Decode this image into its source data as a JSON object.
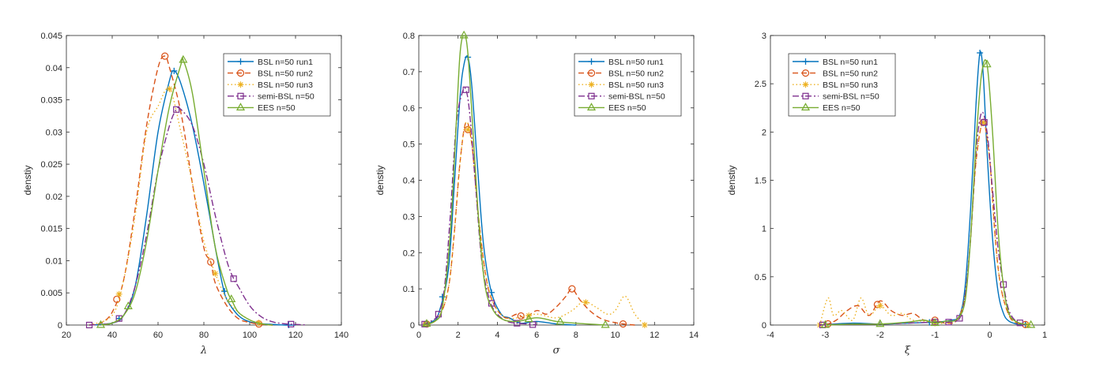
{
  "colors": {
    "blue": "#0072BD",
    "orange": "#D95319",
    "yellow": "#EDB120",
    "purple": "#7E2F8E",
    "green": "#77AC30",
    "axis": "#262626"
  },
  "chart_data": [
    {
      "type": "line",
      "xlabel": "λ",
      "ylabel": "denstiy",
      "xlim": [
        20,
        140
      ],
      "ylim": [
        0,
        0.045
      ],
      "xticks": [
        "20",
        "40",
        "60",
        "80",
        "100",
        "120",
        "140"
      ],
      "yticks": [
        "0",
        "0.005",
        "0.01",
        "0.015",
        "0.02",
        "0.025",
        "0.03",
        "0.035",
        "0.04",
        "0.045"
      ],
      "legend_position": "top-right",
      "series": [
        {
          "name": "BSL n=50 run1",
          "color": "blue",
          "dash": "",
          "marker": "plus",
          "x": [
            30,
            40,
            45,
            50,
            55,
            60,
            65,
            67,
            70,
            75,
            80,
            85,
            88,
            90,
            95,
            100,
            105,
            110,
            115,
            120
          ],
          "y": [
            0,
            0.0003,
            0.0015,
            0.006,
            0.017,
            0.03,
            0.038,
            0.0395,
            0.0375,
            0.031,
            0.022,
            0.012,
            0.0065,
            0.004,
            0.0015,
            0.0005,
            0.0002,
            0.0001,
            0,
            0
          ],
          "markers_x": [
            43,
            67,
            89,
            117
          ]
        },
        {
          "name": "BSL n=50 run2",
          "color": "orange",
          "dash": "7,4",
          "marker": "circle",
          "x": [
            30,
            35,
            40,
            45,
            50,
            55,
            60,
            63,
            65,
            70,
            75,
            80,
            83,
            85,
            90,
            95,
            100,
            105,
            110
          ],
          "y": [
            0,
            0.0003,
            0.002,
            0.007,
            0.018,
            0.031,
            0.04,
            0.0418,
            0.04,
            0.033,
            0.022,
            0.012,
            0.0098,
            0.0065,
            0.003,
            0.001,
            0.0004,
            0.0001,
            0
          ],
          "markers_x": [
            42,
            63,
            83,
            104
          ]
        },
        {
          "name": "BSL n=50 run3",
          "color": "yellow",
          "dash": "1.5,3",
          "marker": "asterisk",
          "x": [
            30,
            40,
            45,
            50,
            55,
            60,
            65,
            70,
            75,
            80,
            85,
            90,
            95,
            100,
            105,
            110
          ],
          "y": [
            0,
            0.0015,
            0.007,
            0.017,
            0.03,
            0.034,
            0.0367,
            0.03,
            0.022,
            0.013,
            0.008,
            0.004,
            0.002,
            0.0008,
            0.0002,
            0
          ],
          "markers_x": [
            43,
            65,
            85,
            104
          ]
        },
        {
          "name": "semi-BSL n=50",
          "color": "purple",
          "dash": "8,3,2,3",
          "marker": "square",
          "x": [
            30,
            40,
            45,
            50,
            55,
            60,
            65,
            68,
            70,
            75,
            80,
            85,
            90,
            93,
            95,
            100,
            105,
            110,
            115,
            120,
            125
          ],
          "y": [
            0,
            0.0003,
            0.0015,
            0.006,
            0.014,
            0.024,
            0.031,
            0.0335,
            0.0335,
            0.031,
            0.025,
            0.017,
            0.01,
            0.0072,
            0.006,
            0.003,
            0.0013,
            0.0005,
            0.0002,
            0.0001,
            0
          ],
          "markers_x": [
            30,
            43,
            68,
            93,
            118
          ]
        },
        {
          "name": "EES n=50",
          "color": "green",
          "dash": "",
          "marker": "triangle",
          "x": [
            35,
            40,
            45,
            50,
            55,
            60,
            65,
            70,
            71,
            75,
            80,
            85,
            90,
            92,
            95,
            100,
            105,
            110
          ],
          "y": [
            0,
            0.0003,
            0.0015,
            0.005,
            0.013,
            0.024,
            0.034,
            0.0405,
            0.0412,
            0.036,
            0.024,
            0.012,
            0.0055,
            0.004,
            0.002,
            0.0008,
            0.0002,
            0
          ],
          "markers_x": [
            35,
            47,
            71,
            92
          ]
        }
      ]
    },
    {
      "type": "line",
      "xlabel": "σ",
      "ylabel": "denstiy",
      "xlim": [
        0,
        14
      ],
      "ylim": [
        0,
        0.8
      ],
      "xticks": [
        "0",
        "2",
        "4",
        "6",
        "8",
        "10",
        "12",
        "14"
      ],
      "yticks": [
        "0",
        "0.1",
        "0.2",
        "0.3",
        "0.4",
        "0.5",
        "0.6",
        "0.7",
        "0.8"
      ],
      "legend_position": "top-right",
      "series": [
        {
          "name": "BSL n=50 run1",
          "color": "blue",
          "dash": "",
          "marker": "plus",
          "x": [
            0.3,
            0.7,
            1.0,
            1.5,
            1.8,
            2.1,
            2.3,
            2.5,
            2.7,
            3.0,
            3.3,
            3.7,
            4.2,
            4.6,
            5.2,
            6.0,
            7.0,
            8.0
          ],
          "y": [
            0,
            0.01,
            0.03,
            0.15,
            0.38,
            0.63,
            0.72,
            0.74,
            0.66,
            0.43,
            0.22,
            0.09,
            0.03,
            0.02,
            0.005,
            0.01,
            0.003,
            0
          ],
          "markers_x": [
            0.4,
            1.2,
            2.5,
            3.7
          ]
        },
        {
          "name": "BSL n=50 run2",
          "color": "orange",
          "dash": "7,4",
          "marker": "circle",
          "x": [
            0.3,
            1.0,
            1.5,
            1.8,
            2.1,
            2.4,
            2.7,
            3.0,
            3.4,
            3.8,
            4.4,
            5.0,
            5.4,
            6.0,
            6.5,
            7.0,
            7.5,
            7.8,
            8.2,
            8.7,
            9.2,
            9.7,
            10.4,
            11.0
          ],
          "y": [
            0,
            0.02,
            0.1,
            0.25,
            0.45,
            0.56,
            0.5,
            0.32,
            0.14,
            0.06,
            0.02,
            0.03,
            0.02,
            0.04,
            0.03,
            0.05,
            0.08,
            0.1,
            0.07,
            0.04,
            0.02,
            0.01,
            0.003,
            0
          ],
          "markers_x": [
            0.4,
            2.5,
            5.2,
            7.8,
            10.4
          ]
        },
        {
          "name": "BSL n=50 run3",
          "color": "yellow",
          "dash": "1.5,3",
          "marker": "asterisk",
          "x": [
            0.3,
            1.0,
            1.5,
            1.8,
            2.1,
            2.4,
            2.7,
            3.0,
            3.4,
            3.8,
            4.4,
            5.0,
            6.0,
            7.0,
            7.8,
            8.4,
            9.0,
            9.6,
            10.0,
            10.5,
            11.0,
            11.5
          ],
          "y": [
            0,
            0.02,
            0.1,
            0.25,
            0.45,
            0.56,
            0.5,
            0.32,
            0.14,
            0.06,
            0.02,
            0.02,
            0.03,
            0.02,
            0.04,
            0.065,
            0.05,
            0.03,
            0.04,
            0.08,
            0.03,
            0
          ],
          "markers_x": [
            0.4,
            2.5,
            5.6,
            8.5,
            11.5
          ]
        },
        {
          "name": "semi-BSL n=50",
          "color": "purple",
          "dash": "8,3,2,3",
          "marker": "square",
          "x": [
            0.2,
            0.6,
            1.0,
            1.3,
            1.6,
            1.9,
            2.2,
            2.4,
            2.6,
            2.9,
            3.2,
            3.6,
            4.0,
            4.5,
            5.0,
            5.5,
            6.0
          ],
          "y": [
            0,
            0.01,
            0.03,
            0.1,
            0.3,
            0.55,
            0.64,
            0.65,
            0.58,
            0.38,
            0.18,
            0.07,
            0.03,
            0.01,
            0.005,
            0.003,
            0
          ],
          "markers_x": [
            0.3,
            1.0,
            2.4,
            3.7,
            5.0,
            5.8
          ]
        },
        {
          "name": "EES n=50",
          "color": "green",
          "dash": "",
          "marker": "triangle",
          "x": [
            0.2,
            0.8,
            1.2,
            1.6,
            1.9,
            2.1,
            2.3,
            2.5,
            2.8,
            3.1,
            3.4,
            3.8,
            4.3,
            5.0,
            6.0,
            7.0,
            8.0,
            9.5
          ],
          "y": [
            0,
            0.01,
            0.05,
            0.25,
            0.55,
            0.75,
            0.8,
            0.75,
            0.5,
            0.25,
            0.1,
            0.04,
            0.015,
            0.01,
            0.02,
            0.01,
            0.005,
            0
          ],
          "markers_x": [
            0.4,
            2.3,
            5.6,
            7.2,
            9.5
          ]
        }
      ]
    },
    {
      "type": "line",
      "xlabel": "ξ",
      "ylabel": "denstiy",
      "xlim": [
        -4,
        1
      ],
      "ylim": [
        0,
        3
      ],
      "xticks": [
        "-4",
        "-3",
        "-2",
        "-1",
        "0",
        "1"
      ],
      "yticks": [
        "0",
        "0.5",
        "1",
        "1.5",
        "2",
        "2.5",
        "3"
      ],
      "legend_position": "top-left",
      "series": [
        {
          "name": "BSL n=50 run1",
          "color": "blue",
          "dash": "",
          "marker": "plus",
          "x": [
            -3.1,
            -2.5,
            -2.0,
            -1.5,
            -1.0,
            -0.7,
            -0.55,
            -0.45,
            -0.35,
            -0.25,
            -0.18,
            -0.12,
            -0.05,
            0.05,
            0.15,
            0.25,
            0.35,
            0.5,
            0.7
          ],
          "y": [
            0,
            0.02,
            0.01,
            0.02,
            0.03,
            0.05,
            0.1,
            0.4,
            1.2,
            2.3,
            2.82,
            2.6,
            1.8,
            0.9,
            0.35,
            0.12,
            0.04,
            0.01,
            0
          ],
          "markers_x": [
            -1.1,
            -0.18,
            0.65
          ]
        },
        {
          "name": "BSL n=50 run2",
          "color": "orange",
          "dash": "7,4",
          "marker": "circle",
          "x": [
            -3.0,
            -2.8,
            -2.6,
            -2.4,
            -2.2,
            -2.0,
            -1.8,
            -1.6,
            -1.4,
            -1.2,
            -1.0,
            -0.8,
            -0.6,
            -0.45,
            -0.35,
            -0.25,
            -0.12,
            0.0,
            0.1,
            0.2,
            0.35,
            0.5,
            0.7
          ],
          "y": [
            0,
            0.05,
            0.15,
            0.2,
            0.1,
            0.25,
            0.15,
            0.1,
            0.12,
            0.05,
            0.05,
            0.02,
            0.05,
            0.3,
            0.9,
            1.7,
            2.1,
            1.7,
            0.9,
            0.4,
            0.1,
            0.02,
            0
          ],
          "markers_x": [
            -2.95,
            -2.05,
            -1.0,
            -0.12,
            0.65
          ]
        },
        {
          "name": "BSL n=50 run3",
          "color": "yellow",
          "dash": "1.5,3",
          "marker": "asterisk",
          "x": [
            -3.1,
            -2.95,
            -2.85,
            -2.7,
            -2.5,
            -2.35,
            -2.2,
            -2.0,
            -1.8,
            -1.6,
            -1.4,
            -1.2,
            -1.0,
            -0.8,
            -0.6,
            -0.45,
            -0.35,
            -0.25,
            -0.12,
            0.0,
            0.1,
            0.2,
            0.35,
            0.5,
            0.7
          ],
          "y": [
            0,
            0.28,
            0.1,
            0.15,
            0.05,
            0.28,
            0.1,
            0.2,
            0.1,
            0.12,
            0.05,
            0.04,
            0.02,
            0.02,
            0.05,
            0.3,
            0.9,
            1.7,
            2.1,
            1.7,
            0.9,
            0.4,
            0.1,
            0.02,
            0
          ],
          "markers_x": [
            -3.1,
            -2.0,
            -1.0,
            -0.12,
            0.7
          ]
        },
        {
          "name": "semi-BSL n=50",
          "color": "purple",
          "dash": "8,3,2,3",
          "marker": "square",
          "x": [
            -3.1,
            -2.5,
            -2.0,
            -1.5,
            -1.0,
            -0.75,
            -0.55,
            -0.45,
            -0.35,
            -0.25,
            -0.15,
            -0.05,
            0.05,
            0.15,
            0.25,
            0.35,
            0.5,
            0.7
          ],
          "y": [
            0,
            0.01,
            0.01,
            0.02,
            0.03,
            0.03,
            0.07,
            0.3,
            0.9,
            1.8,
            2.2,
            2.0,
            1.4,
            0.8,
            0.42,
            0.15,
            0.03,
            0
          ],
          "markers_x": [
            -3.05,
            -1.0,
            -0.75,
            -0.55,
            -0.1,
            0.25,
            0.55
          ]
        },
        {
          "name": "EES n=50",
          "color": "green",
          "dash": "",
          "marker": "triangle",
          "x": [
            -3.0,
            -2.5,
            -2.0,
            -1.5,
            -1.2,
            -1.0,
            -0.8,
            -0.6,
            -0.45,
            -0.35,
            -0.25,
            -0.15,
            -0.05,
            0.05,
            0.15,
            0.25,
            0.35,
            0.5,
            0.75
          ],
          "y": [
            0,
            0.01,
            0.01,
            0.03,
            0.05,
            0.02,
            0.04,
            0.06,
            0.25,
            0.9,
            1.9,
            2.6,
            2.7,
            2.0,
            1.0,
            0.4,
            0.12,
            0.03,
            0
          ],
          "markers_x": [
            -3.0,
            -2.0,
            -1.0,
            -0.05,
            0.75
          ]
        }
      ]
    }
  ]
}
